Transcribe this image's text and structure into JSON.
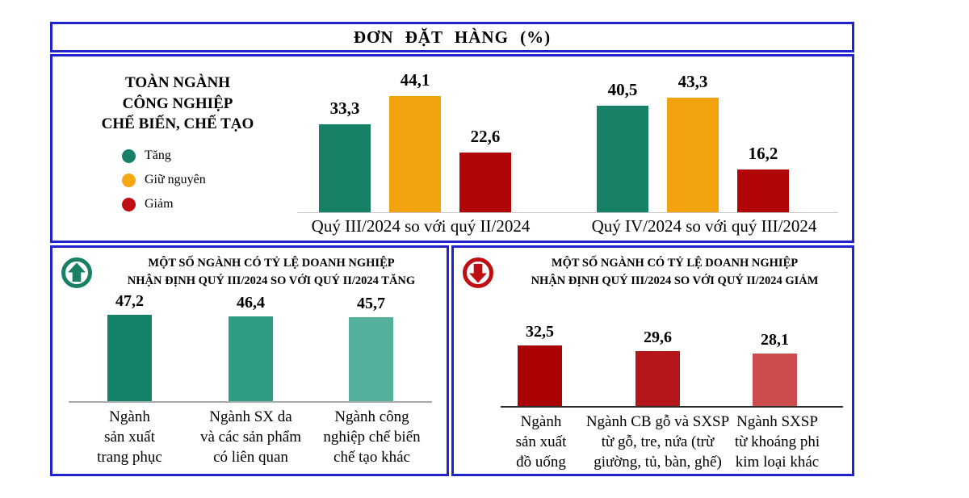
{
  "title": "ĐƠN ĐẶT HÀNG (%)",
  "colors": {
    "border_blue": "#2222CC",
    "tang_green": "#178066",
    "giu_nguyen_orange": "#F3A30D",
    "giam_red": "#B20508",
    "baseline_gray": "#C6C6C6"
  },
  "top_panel": {
    "heading_lines": [
      "TOÀN NGÀNH",
      "CÔNG NGHIỆP",
      "CHẾ BIẾN, CHẾ TẠO"
    ],
    "legend": [
      {
        "label": "Tăng",
        "color": "#178066"
      },
      {
        "label": "Giữ nguyên",
        "color": "#F5A714"
      },
      {
        "label": "Giảm",
        "color": "#BE0E13"
      }
    ],
    "groups": [
      {
        "label": "Quý III/2024 so với quý II/2024",
        "bars": [
          {
            "name": "Tăng",
            "value": 33.3,
            "display": "33,3",
            "color": "#178066"
          },
          {
            "name": "Giữ nguyên",
            "value": 44.1,
            "display": "44,1",
            "color": "#F3A30D"
          },
          {
            "name": "Giảm",
            "value": 22.6,
            "display": "22,6",
            "color": "#B20508"
          }
        ]
      },
      {
        "label": "Quý IV/2024 so với quý III/2024",
        "bars": [
          {
            "name": "Tăng",
            "value": 40.5,
            "display": "40,5",
            "color": "#178066"
          },
          {
            "name": "Giữ nguyên",
            "value": 43.3,
            "display": "43,3",
            "color": "#F3A30D"
          },
          {
            "name": "Giảm",
            "value": 16.2,
            "display": "16,2",
            "color": "#B20508"
          }
        ]
      }
    ]
  },
  "bottom_left": {
    "icon": "up-arrow",
    "icon_color": "#178066",
    "heading_lines": [
      "MỘT SỐ NGÀNH CÓ TỶ LỆ DOANH NGHIỆP",
      "NHẬN ĐỊNH QUÝ III/2024 SO VỚI QUÝ II/2024 TĂNG"
    ],
    "bars": [
      {
        "value": 47.2,
        "display": "47,2",
        "color": "#14816B",
        "label_lines": [
          "Ngành",
          "sản xuất",
          "trang phục"
        ]
      },
      {
        "value": 46.4,
        "display": "46,4",
        "color": "#2E9C83",
        "label_lines": [
          "Ngành SX da",
          "và các sản phẩm",
          "có liên quan"
        ]
      },
      {
        "value": 45.7,
        "display": "45,7",
        "color": "#55AF9D",
        "label_lines": [
          "Ngành công",
          "nghiệp chế biến",
          "chế tạo khác"
        ]
      }
    ]
  },
  "bottom_right": {
    "icon": "down-arrow",
    "icon_color": "#BE0E13",
    "heading_lines": [
      "MỘT SỐ NGÀNH CÓ TỶ LỆ DOANH NGHIỆP",
      "NHẬN ĐỊNH QUÝ III/2024 SO VỚI QUÝ II/2024 GIẢM"
    ],
    "bars": [
      {
        "value": 32.5,
        "display": "32,5",
        "color": "#AB0205",
        "label_lines": [
          "Ngành",
          "sản xuất",
          "đồ uống"
        ]
      },
      {
        "value": 29.6,
        "display": "29,6",
        "color": "#B5161A",
        "label_lines": [
          "Ngành CB gỗ và SXSP",
          "từ gỗ, tre, nứa (trừ",
          "giường, tủ, bàn, ghế)"
        ]
      },
      {
        "value": 28.1,
        "display": "28,1",
        "color": "#CC4B4D",
        "label_lines": [
          "Ngành SXSP",
          "từ khoáng phi",
          "kim loại khác"
        ]
      }
    ]
  },
  "chart_data": [
    {
      "type": "bar",
      "title": "ĐƠN ĐẶT HÀNG (%) — TOÀN NGÀNH CÔNG NGHIỆP CHẾ BIẾN, CHẾ TẠO",
      "categories": [
        "Quý III/2024 so với quý II/2024",
        "Quý IV/2024 so với quý III/2024"
      ],
      "series": [
        {
          "name": "Tăng",
          "values": [
            33.3,
            40.5
          ]
        },
        {
          "name": "Giữ nguyên",
          "values": [
            44.1,
            43.3
          ]
        },
        {
          "name": "Giảm",
          "values": [
            22.6,
            16.2
          ]
        }
      ],
      "unit": "%",
      "ylim": [
        0,
        50
      ],
      "grid": false,
      "legend_position": "left",
      "data_labels": true
    },
    {
      "type": "bar",
      "title": "MỘT SỐ NGÀNH CÓ TỶ LỆ DOANH NGHIỆP NHẬN ĐỊNH QUÝ III/2024 SO VỚI QUÝ II/2024 TĂNG",
      "categories": [
        "Ngành sản xuất trang phục",
        "Ngành SX da và các sản phẩm có liên quan",
        "Ngành công nghiệp chế biến chế tạo khác"
      ],
      "values": [
        47.2,
        46.4,
        45.7
      ],
      "unit": "%",
      "ylim": [
        0,
        50
      ],
      "grid": false,
      "data_labels": true
    },
    {
      "type": "bar",
      "title": "MỘT SỐ NGÀNH CÓ TỶ LỆ DOANH NGHIỆP NHẬN ĐỊNH QUÝ III/2024 SO VỚI QUÝ II/2024 GIẢM",
      "categories": [
        "Ngành sản xuất đồ uống",
        "Ngành CB gỗ và SXSP từ gỗ, tre, nứa (trừ giường, tủ, bàn, ghế)",
        "Ngành SXSP từ khoáng phi kim loại khác"
      ],
      "values": [
        32.5,
        29.6,
        28.1
      ],
      "unit": "%",
      "ylim": [
        0,
        50
      ],
      "grid": false,
      "data_labels": true
    }
  ]
}
